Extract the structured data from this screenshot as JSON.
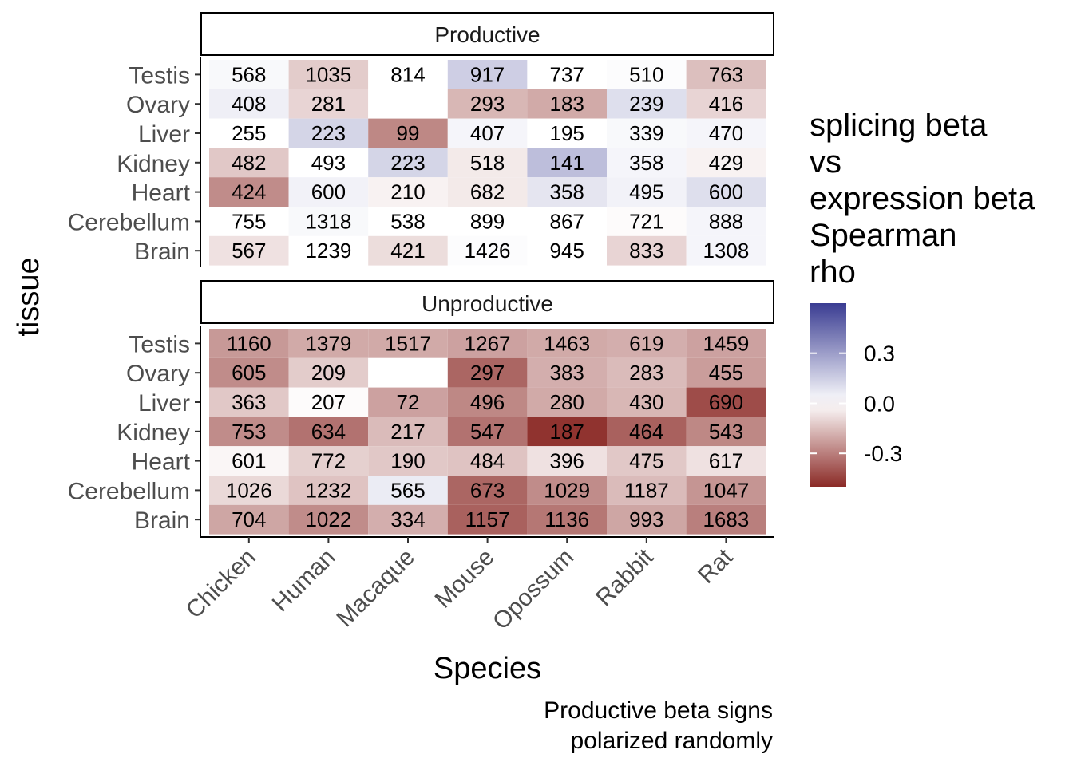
{
  "chart_data": {
    "type": "heatmap",
    "xlabel": "Species",
    "ylabel": "tissue",
    "caption_lines": [
      "Productive beta signs",
      "polarized randomly"
    ],
    "species": [
      "Chicken",
      "Human",
      "Macaque",
      "Mouse",
      "Opossum",
      "Rabbit",
      "Rat"
    ],
    "tissues": [
      "Testis",
      "Ovary",
      "Liver",
      "Kidney",
      "Heart",
      "Cerebellum",
      "Brain"
    ],
    "legend": {
      "title_lines": [
        "splicing beta",
        "vs",
        "expression beta",
        "Spearman",
        "rho"
      ],
      "ticks": [
        {
          "value": 0.3,
          "label": "0.3"
        },
        {
          "value": 0.0,
          "label": "0.0"
        },
        {
          "value": -0.3,
          "label": "-0.3"
        }
      ],
      "range": [
        -0.5,
        0.6
      ],
      "low_color": "#8b2a26",
      "mid_color": "#ffffff",
      "high_color": "#3a3c92"
    },
    "panels": [
      {
        "name": "Productive",
        "counts": [
          [
            568,
            1035,
            814,
            917,
            737,
            510,
            763
          ],
          [
            408,
            281,
            null,
            293,
            183,
            239,
            416
          ],
          [
            255,
            223,
            99,
            407,
            195,
            339,
            470
          ],
          [
            482,
            493,
            223,
            518,
            141,
            358,
            429
          ],
          [
            424,
            600,
            210,
            682,
            358,
            495,
            600
          ],
          [
            755,
            1318,
            538,
            899,
            867,
            721,
            888
          ],
          [
            567,
            1239,
            421,
            1426,
            945,
            833,
            1308
          ]
        ],
        "rho": [
          [
            0.02,
            -0.12,
            0.0,
            0.15,
            0.0,
            0.01,
            -0.15
          ],
          [
            0.05,
            -0.1,
            null,
            -0.17,
            -0.2,
            0.1,
            -0.1
          ],
          [
            0.0,
            0.13,
            -0.28,
            0.03,
            0.0,
            0.02,
            0.03
          ],
          [
            -0.13,
            0.0,
            0.13,
            -0.05,
            0.2,
            0.03,
            -0.03
          ],
          [
            -0.27,
            0.04,
            -0.03,
            -0.05,
            0.08,
            0.04,
            0.1
          ],
          [
            0.0,
            0.02,
            0.0,
            0.0,
            0.0,
            -0.01,
            0.03
          ],
          [
            -0.07,
            0.0,
            -0.08,
            0.01,
            0.0,
            -0.1,
            0.03
          ]
        ]
      },
      {
        "name": "Unproductive",
        "counts": [
          [
            1160,
            1379,
            1517,
            1267,
            1463,
            619,
            1459
          ],
          [
            605,
            209,
            null,
            297,
            383,
            283,
            455
          ],
          [
            363,
            207,
            72,
            496,
            280,
            430,
            690
          ],
          [
            753,
            634,
            217,
            547,
            187,
            464,
            543
          ],
          [
            601,
            772,
            190,
            484,
            396,
            475,
            617
          ],
          [
            1026,
            1232,
            565,
            673,
            1029,
            1187,
            1047
          ],
          [
            704,
            1022,
            334,
            1157,
            1136,
            993,
            1683
          ]
        ],
        "rho": [
          [
            -0.24,
            -0.2,
            -0.2,
            -0.22,
            -0.2,
            -0.19,
            -0.22
          ],
          [
            -0.27,
            -0.12,
            null,
            -0.36,
            -0.19,
            -0.16,
            -0.23
          ],
          [
            -0.13,
            -0.01,
            -0.22,
            -0.28,
            -0.2,
            -0.17,
            -0.42
          ],
          [
            -0.27,
            -0.33,
            -0.16,
            -0.33,
            -0.48,
            -0.37,
            -0.28
          ],
          [
            -0.02,
            -0.11,
            -0.13,
            -0.14,
            -0.07,
            -0.13,
            -0.07
          ],
          [
            -0.09,
            -0.14,
            0.06,
            -0.36,
            -0.27,
            -0.16,
            -0.25
          ],
          [
            -0.21,
            -0.27,
            -0.19,
            -0.37,
            -0.32,
            -0.21,
            -0.3
          ]
        ]
      }
    ]
  }
}
